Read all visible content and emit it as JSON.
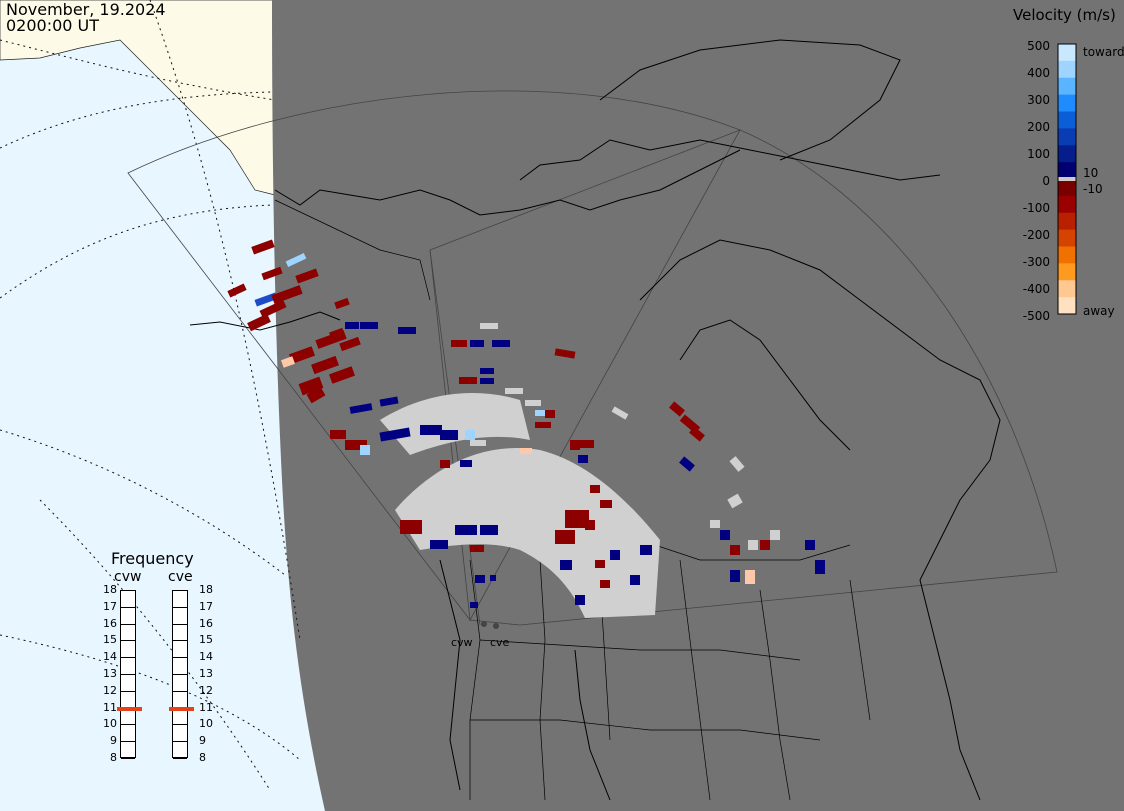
{
  "header": {
    "date": "November, 19.2024",
    "time": "0200:00 UT"
  },
  "legend": {
    "title": "Velocity (m/s)",
    "ticks": [
      "500",
      "400",
      "300",
      "200",
      "100",
      "0",
      "-100",
      "-200",
      "-300",
      "-400",
      "-500"
    ],
    "toward_label": "toward",
    "away_label": "away",
    "pos_small": "10",
    "neg_small": "-10",
    "colors": [
      "#c8e8ff",
      "#9fd4ff",
      "#5ab4ff",
      "#1e8cff",
      "#0a5fd8",
      "#0a3cb4",
      "#051e8c",
      "#000070",
      "#7a0000",
      "#9a0000",
      "#b82000",
      "#d44400",
      "#f07000",
      "#ff9a20",
      "#ffc890",
      "#ffe0c0"
    ]
  },
  "frequency": {
    "title": "Frequency",
    "radars": [
      "cvw",
      "cve"
    ],
    "scale": [
      "18",
      "17",
      "16",
      "15",
      "14",
      "13",
      "12",
      "11",
      "10",
      "9",
      "8"
    ],
    "values_mhz": [
      11,
      11
    ]
  },
  "sites": {
    "cvw": "cvw",
    "cve": "cve"
  },
  "colors": {
    "dark_night": "#737373",
    "ocean": "#e8f6ff",
    "land": "#fdfbe8",
    "ground_scatter": "#d0d0d0",
    "toward_strong": "#000080",
    "away_strong": "#8c0000",
    "frequency_marker": "#e5421b"
  }
}
